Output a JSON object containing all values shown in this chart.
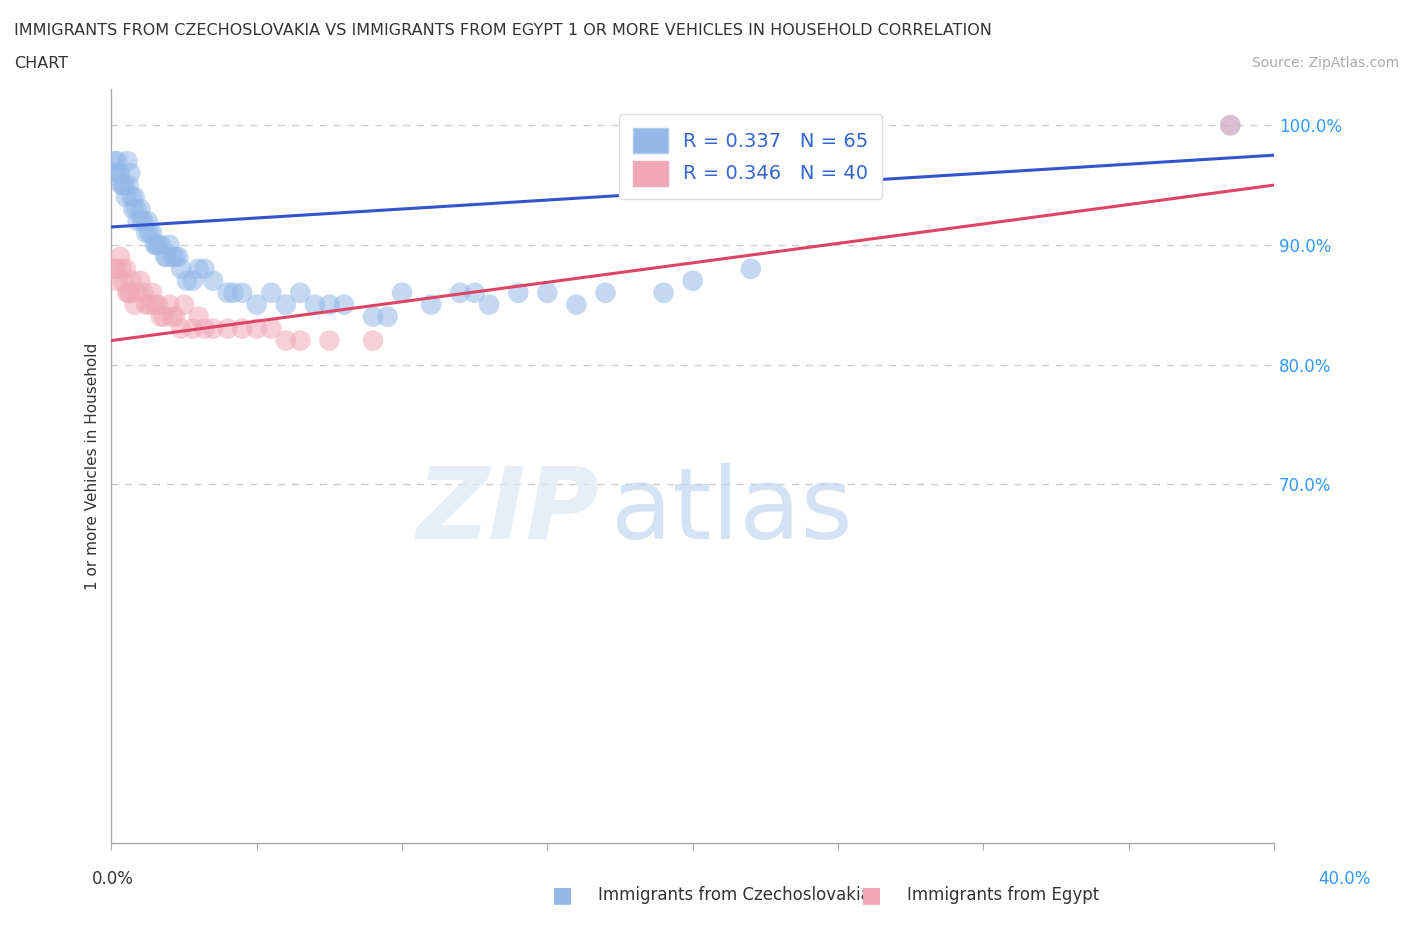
{
  "title_line1": "IMMIGRANTS FROM CZECHOSLOVAKIA VS IMMIGRANTS FROM EGYPT 1 OR MORE VEHICLES IN HOUSEHOLD CORRELATION",
  "title_line2": "CHART",
  "source": "Source: ZipAtlas.com",
  "ylabel": "1 or more Vehicles in Household",
  "color_czech": "#94b8e8",
  "color_egypt": "#f0a8b8",
  "trendline_color_czech": "#3355cc",
  "trendline_color_egypt": "#dd4466",
  "watermark_zip": "ZIP",
  "watermark_atlas": "atlas",
  "legend_label_czech": "Immigrants from Czechoslovakia",
  "legend_label_egypt": "Immigrants from Egypt",
  "legend_r1": "R = 0.337   N = 65",
  "legend_r2": "R = 0.346   N = 40",
  "xmin": 0.0,
  "xmax": 40.0,
  "ymin": 40.0,
  "ymax": 103.0,
  "ytick_vals": [
    100.0,
    90.0,
    80.0,
    70.0
  ],
  "ytick_labels": [
    "100.0%",
    "90.0%",
    "80.0%",
    "70.0%"
  ],
  "yright_bottom_label": "40.0%",
  "xleft_label": "0.0%",
  "xright_label": "40.0%",
  "czech_x": [
    0.1,
    0.15,
    0.2,
    0.25,
    0.3,
    0.35,
    0.4,
    0.5,
    0.55,
    0.6,
    0.65,
    0.7,
    0.75,
    0.8,
    0.9,
    1.0,
    1.1,
    1.2,
    1.4,
    1.5,
    1.7,
    1.9,
    2.0,
    2.2,
    2.4,
    2.6,
    2.8,
    3.0,
    3.5,
    4.0,
    4.5,
    5.0,
    5.5,
    6.0,
    6.5,
    7.0,
    8.0,
    9.0,
    10.0,
    11.0,
    12.0,
    13.0,
    14.0,
    15.0,
    17.0,
    20.0,
    1.3,
    1.6,
    2.1,
    2.3,
    0.45,
    0.85,
    1.05,
    1.25,
    1.55,
    1.85,
    3.2,
    4.2,
    7.5,
    9.5,
    12.5,
    16.0,
    19.0,
    22.0,
    38.5
  ],
  "czech_y": [
    97,
    96,
    97,
    96,
    96,
    95,
    95,
    94,
    97,
    95,
    96,
    94,
    93,
    94,
    92,
    93,
    92,
    91,
    91,
    90,
    90,
    89,
    90,
    89,
    88,
    87,
    87,
    88,
    87,
    86,
    86,
    85,
    86,
    85,
    86,
    85,
    85,
    84,
    86,
    85,
    86,
    85,
    86,
    86,
    86,
    87,
    91,
    90,
    89,
    89,
    95,
    93,
    92,
    92,
    90,
    89,
    88,
    86,
    85,
    84,
    86,
    85,
    86,
    88,
    100
  ],
  "egypt_x": [
    0.1,
    0.2,
    0.3,
    0.4,
    0.5,
    0.6,
    0.7,
    0.8,
    0.9,
    1.0,
    1.1,
    1.2,
    1.4,
    1.6,
    1.8,
    2.0,
    2.2,
    2.5,
    2.8,
    3.0,
    3.5,
    4.0,
    5.0,
    5.5,
    6.5,
    7.5,
    0.35,
    0.65,
    1.3,
    1.7,
    2.1,
    2.4,
    3.2,
    4.5,
    6.0,
    9.0,
    0.15,
    0.55,
    1.5,
    38.5
  ],
  "egypt_y": [
    88,
    87,
    89,
    87,
    88,
    86,
    87,
    85,
    86,
    87,
    86,
    85,
    86,
    85,
    84,
    85,
    84,
    85,
    83,
    84,
    83,
    83,
    83,
    83,
    82,
    82,
    88,
    86,
    85,
    84,
    84,
    83,
    83,
    83,
    82,
    82,
    88,
    86,
    85,
    100
  ],
  "czech_trend_x0": 0.0,
  "czech_trend_y0": 91.5,
  "czech_trend_x1": 40.0,
  "czech_trend_y1": 97.5,
  "egypt_trend_x0": 0.0,
  "egypt_trend_y0": 82.0,
  "egypt_trend_x1": 40.0,
  "egypt_trend_y1": 95.0
}
